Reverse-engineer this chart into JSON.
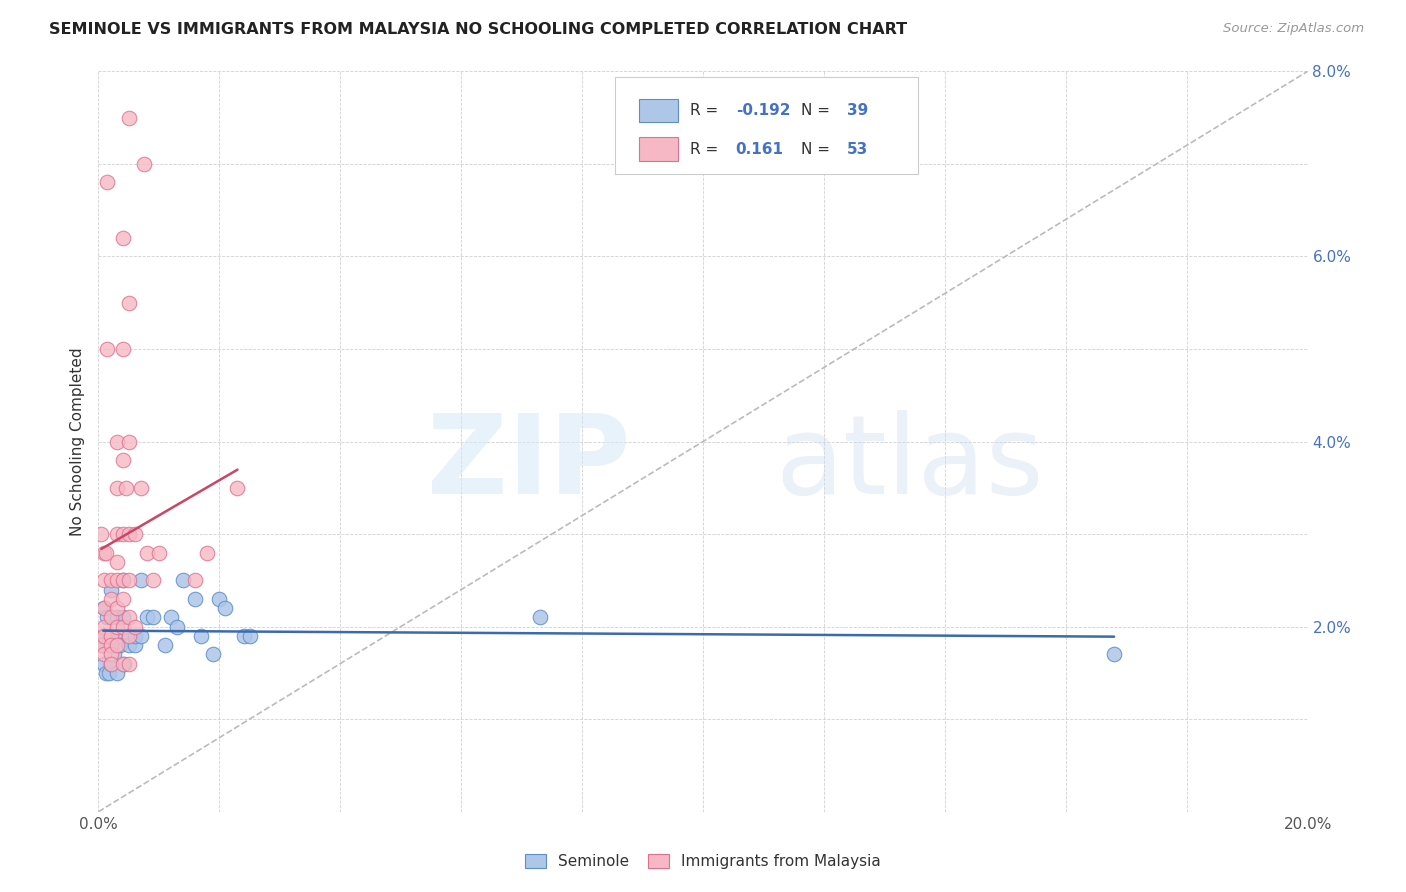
{
  "title": "SEMINOLE VS IMMIGRANTS FROM MALAYSIA NO SCHOOLING COMPLETED CORRELATION CHART",
  "source": "Source: ZipAtlas.com",
  "ylabel": "No Schooling Completed",
  "xlim": [
    0,
    0.2
  ],
  "ylim": [
    0,
    0.08
  ],
  "xticks": [
    0.0,
    0.02,
    0.04,
    0.06,
    0.08,
    0.1,
    0.12,
    0.14,
    0.16,
    0.18,
    0.2
  ],
  "yticks": [
    0.0,
    0.01,
    0.02,
    0.03,
    0.04,
    0.05,
    0.06,
    0.07,
    0.08
  ],
  "xticklabels": [
    "0.0%",
    "",
    "",
    "",
    "",
    "",
    "",
    "",
    "",
    "",
    "20.0%"
  ],
  "yticklabels_right": [
    "",
    "",
    "2.0%",
    "",
    "4.0%",
    "",
    "6.0%",
    "",
    "8.0%"
  ],
  "legend_r_blue": "-0.192",
  "legend_n_blue": "39",
  "legend_r_pink": "0.161",
  "legend_n_pink": "53",
  "blue_fill": "#aec6e8",
  "pink_fill": "#f5b8c4",
  "blue_edge": "#5b8fcc",
  "pink_edge": "#e07090",
  "blue_line": "#3a6ab0",
  "pink_line": "#cc4466",
  "ref_line_color": "#bbbbbb",
  "bg": "#ffffff",
  "seminole_x": [
    0.0008,
    0.0009,
    0.001,
    0.001,
    0.0012,
    0.0015,
    0.0018,
    0.002,
    0.002,
    0.002,
    0.0025,
    0.003,
    0.003,
    0.003,
    0.0035,
    0.004,
    0.004,
    0.0042,
    0.005,
    0.005,
    0.006,
    0.006,
    0.007,
    0.007,
    0.008,
    0.009,
    0.011,
    0.012,
    0.013,
    0.014,
    0.016,
    0.017,
    0.019,
    0.02,
    0.021,
    0.024,
    0.025,
    0.073,
    0.168
  ],
  "seminole_y": [
    0.018,
    0.022,
    0.019,
    0.016,
    0.015,
    0.021,
    0.015,
    0.019,
    0.016,
    0.024,
    0.017,
    0.019,
    0.015,
    0.021,
    0.018,
    0.021,
    0.025,
    0.016,
    0.019,
    0.018,
    0.018,
    0.019,
    0.019,
    0.025,
    0.021,
    0.021,
    0.018,
    0.021,
    0.02,
    0.025,
    0.023,
    0.019,
    0.017,
    0.023,
    0.022,
    0.019,
    0.019,
    0.021,
    0.017
  ],
  "malaysia_x": [
    0.0005,
    0.0005,
    0.001,
    0.001,
    0.001,
    0.001,
    0.001,
    0.001,
    0.0012,
    0.0015,
    0.0015,
    0.002,
    0.002,
    0.002,
    0.002,
    0.002,
    0.002,
    0.002,
    0.003,
    0.003,
    0.003,
    0.003,
    0.003,
    0.003,
    0.003,
    0.003,
    0.004,
    0.004,
    0.004,
    0.004,
    0.004,
    0.004,
    0.004,
    0.004,
    0.0045,
    0.005,
    0.005,
    0.005,
    0.005,
    0.005,
    0.005,
    0.005,
    0.005,
    0.006,
    0.006,
    0.007,
    0.0075,
    0.008,
    0.009,
    0.01,
    0.016,
    0.018,
    0.023
  ],
  "malaysia_y": [
    0.03,
    0.018,
    0.028,
    0.025,
    0.022,
    0.02,
    0.019,
    0.017,
    0.028,
    0.05,
    0.068,
    0.025,
    0.023,
    0.021,
    0.019,
    0.018,
    0.017,
    0.016,
    0.04,
    0.035,
    0.03,
    0.027,
    0.025,
    0.022,
    0.02,
    0.018,
    0.062,
    0.05,
    0.038,
    0.03,
    0.025,
    0.023,
    0.02,
    0.016,
    0.035,
    0.075,
    0.055,
    0.04,
    0.03,
    0.025,
    0.021,
    0.019,
    0.016,
    0.03,
    0.02,
    0.035,
    0.07,
    0.028,
    0.025,
    0.028,
    0.025,
    0.028,
    0.035
  ]
}
